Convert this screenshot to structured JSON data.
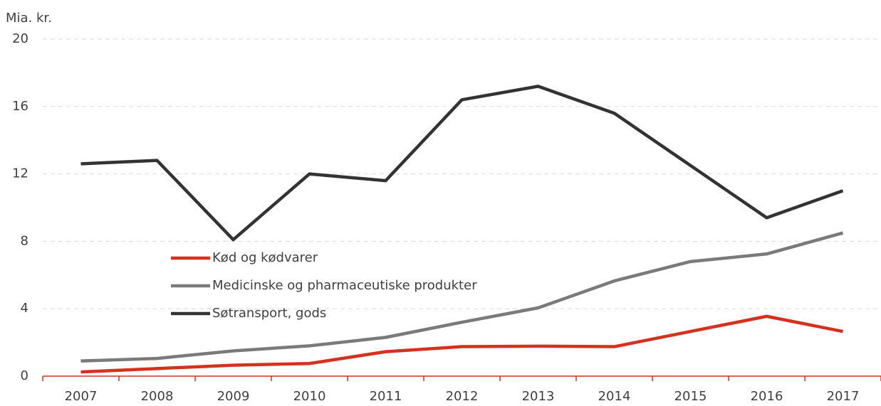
{
  "chart_data": {
    "type": "line",
    "y_label": "Mia. kr.",
    "categories": [
      "2007",
      "2008",
      "2009",
      "2010",
      "2011",
      "2012",
      "2013",
      "2014",
      "2015",
      "2016",
      "2017"
    ],
    "series": [
      {
        "name": "Kød og kødvarer",
        "color": "#d2321e",
        "values": [
          0.25,
          0.45,
          0.65,
          0.75,
          1.45,
          1.75,
          1.78,
          1.75,
          2.65,
          3.55,
          2.65
        ]
      },
      {
        "name": "Medicinske og pharmaceutiske produkter",
        "color": "#7a7a7a",
        "values": [
          0.9,
          1.05,
          1.5,
          1.8,
          2.3,
          3.2,
          4.05,
          5.65,
          6.8,
          7.25,
          8.5
        ]
      },
      {
        "name": "Søtransport, gods",
        "color": "#333333",
        "values": [
          12.6,
          12.8,
          8.1,
          12.0,
          11.6,
          16.4,
          17.2,
          15.6,
          12.5,
          9.4,
          11.0
        ]
      }
    ],
    "ylim": [
      0,
      20
    ],
    "yticks": [
      0,
      4,
      8,
      12,
      16,
      20
    ],
    "grid": true,
    "axis_color": "#d2321e"
  }
}
